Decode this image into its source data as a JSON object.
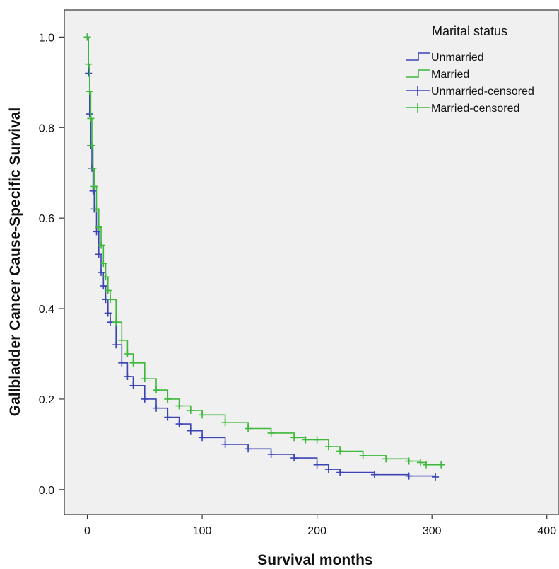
{
  "chart_data": {
    "type": "line",
    "title": "",
    "xlabel": "Survival months",
    "ylabel": "Gallbladder Cancer Cause-Specific Survival",
    "xlim": [
      -20,
      410
    ],
    "ylim": [
      -0.055,
      1.06
    ],
    "x_ticks": [
      0,
      100,
      200,
      300,
      400
    ],
    "y_ticks": [
      0.0,
      0.2,
      0.4,
      0.6,
      0.8,
      1.0
    ],
    "x_tick_labels": [
      "0",
      "100",
      "200",
      "300",
      "400"
    ],
    "y_tick_labels": [
      "0.0",
      "0.2",
      "0.4",
      "0.6",
      "0.8",
      "1.0"
    ],
    "grid": false,
    "legend": {
      "title": "Marital status",
      "placement": "top-right",
      "entries": [
        {
          "label": "Unmarried",
          "series": "Unmarried",
          "kind": "step"
        },
        {
          "label": "Married",
          "series": "Married",
          "kind": "step"
        },
        {
          "label": "Unmarried-censored",
          "series": "Unmarried",
          "kind": "censor"
        },
        {
          "label": "Married-censored",
          "series": "Married",
          "kind": "censor"
        }
      ]
    },
    "series": [
      {
        "name": "Unmarried",
        "color": "#3c44b4",
        "x": [
          0,
          1,
          2,
          3,
          4,
          5,
          6,
          8,
          10,
          12,
          14,
          16,
          18,
          20,
          25,
          30,
          35,
          40,
          50,
          60,
          70,
          80,
          90,
          100,
          120,
          140,
          160,
          180,
          200,
          210,
          220,
          250,
          280,
          303
        ],
        "y": [
          1.0,
          0.92,
          0.83,
          0.76,
          0.71,
          0.66,
          0.62,
          0.57,
          0.52,
          0.48,
          0.45,
          0.42,
          0.39,
          0.37,
          0.32,
          0.28,
          0.25,
          0.23,
          0.2,
          0.18,
          0.16,
          0.145,
          0.13,
          0.115,
          0.1,
          0.09,
          0.078,
          0.07,
          0.055,
          0.045,
          0.038,
          0.033,
          0.03,
          0.028
        ]
      },
      {
        "name": "Married",
        "color": "#3db83a",
        "x": [
          0,
          1,
          2,
          3,
          4,
          5,
          6,
          8,
          10,
          12,
          14,
          16,
          18,
          20,
          25,
          30,
          35,
          40,
          50,
          60,
          70,
          80,
          90,
          100,
          120,
          140,
          160,
          180,
          190,
          200,
          210,
          220,
          240,
          260,
          280,
          290,
          295,
          308
        ],
        "y": [
          1.0,
          0.94,
          0.88,
          0.82,
          0.76,
          0.71,
          0.67,
          0.62,
          0.58,
          0.54,
          0.5,
          0.47,
          0.44,
          0.42,
          0.37,
          0.33,
          0.3,
          0.28,
          0.245,
          0.22,
          0.2,
          0.185,
          0.175,
          0.165,
          0.148,
          0.135,
          0.125,
          0.115,
          0.11,
          0.11,
          0.095,
          0.085,
          0.075,
          0.068,
          0.063,
          0.06,
          0.055,
          0.055
        ]
      }
    ]
  }
}
